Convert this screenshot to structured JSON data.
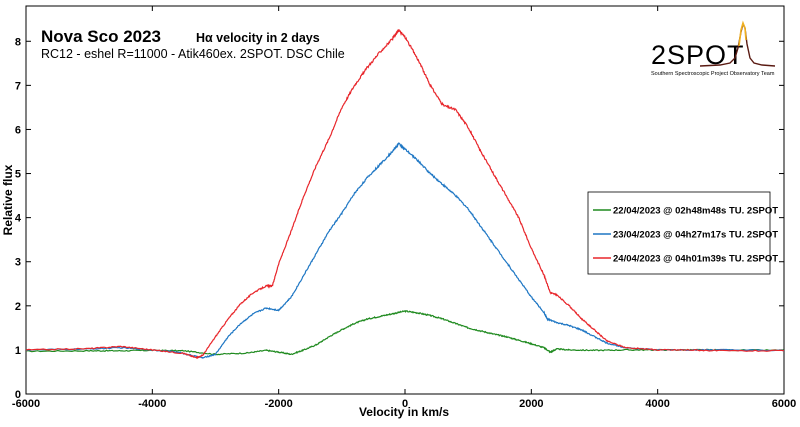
{
  "chart_data": {
    "type": "line",
    "title": "Nova Sco 2023",
    "title_suffix": "Hα velocity in 2 days",
    "subtitle": "RC12 - eshel R=11000 - Atik460ex. 2SPOT. DSC Chile",
    "xlabel": "Velocity in km/s",
    "ylabel": "Relative flux",
    "xlim": [
      -6000,
      6000
    ],
    "ylim": [
      0,
      8.8
    ],
    "xticks": [
      -6000,
      -4000,
      -2000,
      0,
      2000,
      4000,
      6000
    ],
    "yticks": [
      0,
      1,
      2,
      3,
      4,
      5,
      6,
      7,
      8
    ],
    "grid": false,
    "legend_position": "right",
    "logo": {
      "text": "2SPOT",
      "caption": "Southern Spectroscopic Project Observatory Team"
    },
    "series": [
      {
        "name": "22/04/2023 @ 02h48m48s TU.  2SPOT",
        "color": "#1f8a1f",
        "x": [
          -6000,
          -5000,
          -4500,
          -4000,
          -3500,
          -3000,
          -2500,
          -2200,
          -2000,
          -1800,
          -1600,
          -1400,
          -1200,
          -1000,
          -800,
          -600,
          -400,
          -200,
          0,
          200,
          400,
          600,
          800,
          1000,
          1200,
          1400,
          1600,
          1800,
          2000,
          2200,
          2300,
          2400,
          2600,
          3000,
          3500,
          4000,
          4500,
          5000,
          6000
        ],
        "y": [
          0.97,
          0.98,
          0.98,
          0.99,
          0.98,
          0.9,
          0.93,
          0.99,
          0.95,
          0.9,
          1.0,
          1.12,
          1.3,
          1.46,
          1.6,
          1.7,
          1.76,
          1.82,
          1.88,
          1.84,
          1.78,
          1.7,
          1.6,
          1.5,
          1.43,
          1.36,
          1.3,
          1.22,
          1.14,
          1.05,
          0.95,
          1.02,
          1.0,
          0.99,
          1.0,
          1.0,
          1.0,
          1.0,
          0.99
        ]
      },
      {
        "name": "23/04/2023 @ 04h27m17s TU.  2SPOT",
        "color": "#1f77c4",
        "x": [
          -6000,
          -5000,
          -4500,
          -4000,
          -3600,
          -3400,
          -3200,
          -3000,
          -2800,
          -2600,
          -2400,
          -2200,
          -2000,
          -1800,
          -1600,
          -1400,
          -1200,
          -1000,
          -800,
          -600,
          -400,
          -200,
          -100,
          0,
          200,
          400,
          600,
          800,
          1000,
          1200,
          1400,
          1600,
          1800,
          2000,
          2200,
          2250,
          2400,
          2600,
          2800,
          3000,
          3200,
          3500,
          4000,
          4500,
          5000,
          6000
        ],
        "y": [
          1.0,
          1.02,
          1.05,
          1.0,
          0.95,
          0.88,
          0.82,
          0.9,
          1.3,
          1.6,
          1.82,
          1.95,
          1.9,
          2.2,
          2.7,
          3.2,
          3.7,
          4.1,
          4.55,
          4.9,
          5.2,
          5.5,
          5.68,
          5.55,
          5.3,
          5.0,
          4.75,
          4.5,
          4.2,
          3.8,
          3.4,
          3.0,
          2.6,
          2.2,
          1.85,
          1.7,
          1.62,
          1.55,
          1.45,
          1.3,
          1.15,
          1.05,
          1.0,
          1.0,
          1.0,
          0.98
        ]
      },
      {
        "name": "24/04/2023 @ 04h01m39s TU.  2SPOT",
        "color": "#e8262b",
        "x": [
          -6000,
          -5000,
          -4500,
          -4000,
          -3500,
          -3300,
          -3200,
          -3000,
          -2800,
          -2600,
          -2400,
          -2200,
          -2100,
          -2000,
          -1800,
          -1600,
          -1400,
          -1200,
          -1000,
          -800,
          -600,
          -400,
          -200,
          -100,
          0,
          200,
          400,
          600,
          800,
          1000,
          1200,
          1400,
          1600,
          1800,
          2000,
          2200,
          2300,
          2400,
          2600,
          2800,
          3000,
          3200,
          3500,
          4000,
          4500,
          5000,
          6000
        ],
        "y": [
          1.0,
          1.03,
          1.08,
          1.0,
          0.92,
          0.82,
          0.88,
          1.3,
          1.7,
          2.05,
          2.3,
          2.45,
          2.45,
          2.95,
          3.7,
          4.5,
          5.2,
          5.8,
          6.5,
          7.0,
          7.4,
          7.75,
          8.05,
          8.25,
          8.1,
          7.6,
          7.0,
          6.55,
          6.45,
          6.05,
          5.5,
          5.0,
          4.5,
          4.0,
          3.3,
          2.7,
          2.3,
          2.25,
          2.0,
          1.7,
          1.45,
          1.2,
          1.05,
          1.0,
          1.0,
          0.98,
          0.98
        ]
      }
    ]
  }
}
